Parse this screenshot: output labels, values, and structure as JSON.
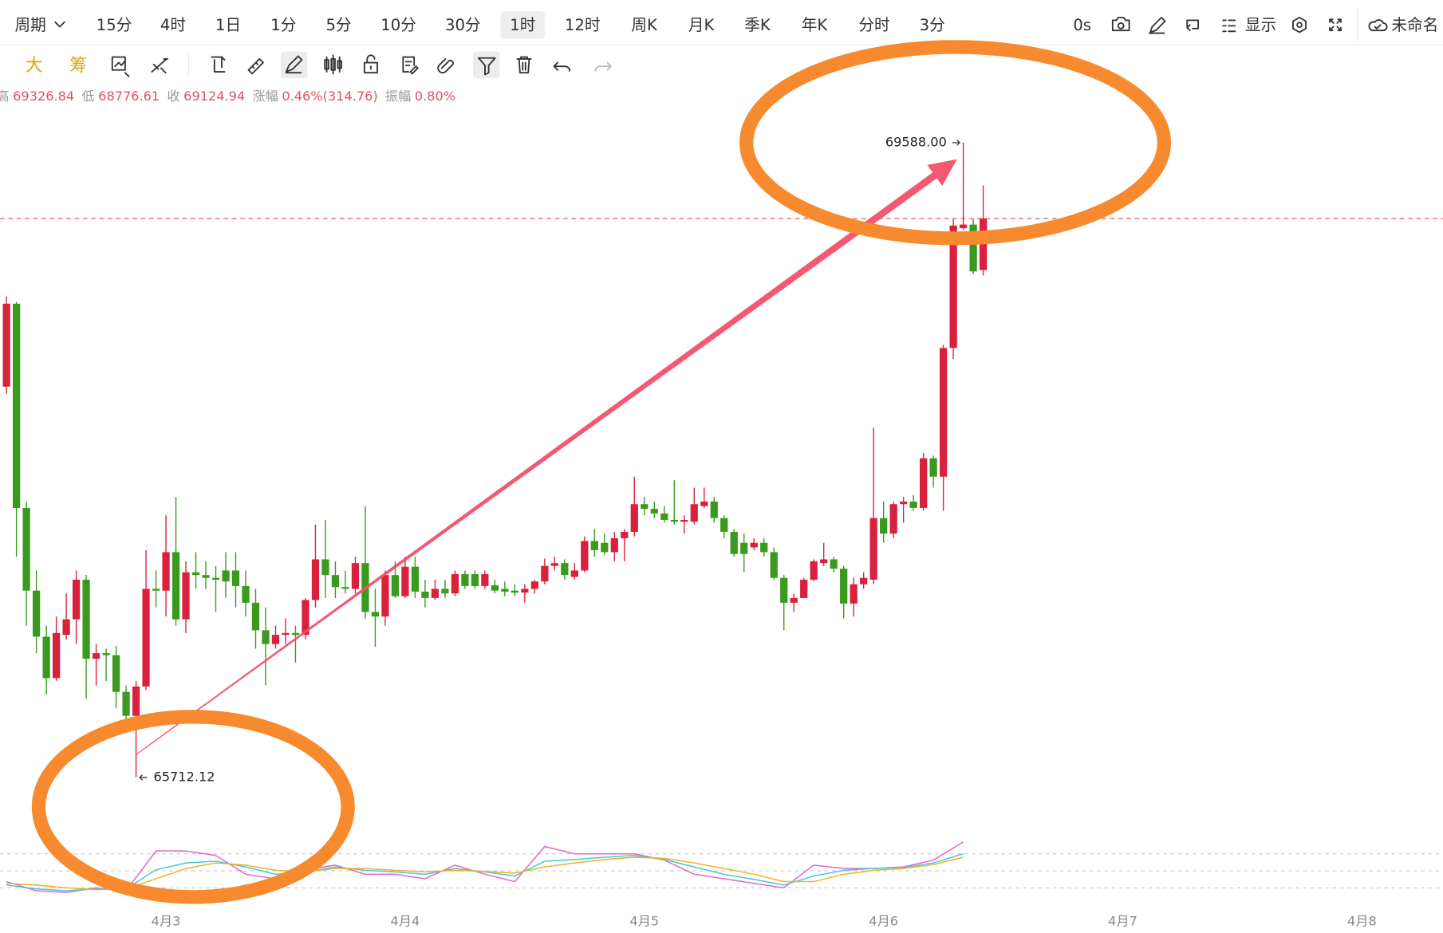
{
  "toolbar": {
    "periods": [
      {
        "label": "周期"
      },
      {
        "label": "15分"
      },
      {
        "label": "4时"
      },
      {
        "label": "1日"
      },
      {
        "label": "1分"
      },
      {
        "label": "5分"
      },
      {
        "label": "10分"
      },
      {
        "label": "30分"
      },
      {
        "label": "1时",
        "active": true
      },
      {
        "label": "12时"
      },
      {
        "label": "周K"
      },
      {
        "label": "月K"
      },
      {
        "label": "季K"
      },
      {
        "label": "年K"
      },
      {
        "label": "分时"
      },
      {
        "label": "3分"
      }
    ],
    "right": [
      "0s",
      "显示",
      "未命名"
    ],
    "tools": [
      "大",
      "筹"
    ]
  },
  "info": {
    "items": [
      [
        "高",
        "69326.84"
      ],
      [
        "低",
        "68776.61"
      ],
      [
        "收",
        "69124.94"
      ],
      [
        "涨幅",
        "0.46%(314.76)"
      ],
      [
        "振幅",
        "0.80%"
      ]
    ]
  },
  "chart_data": [
    {
      "type": "candlestick",
      "x": [
        0,
        1,
        2,
        3,
        4,
        5,
        6,
        7,
        8,
        9,
        10,
        11,
        12,
        13,
        14,
        15,
        16,
        17,
        18,
        19,
        20,
        21,
        22,
        23,
        24,
        25,
        26,
        27,
        28,
        29,
        30,
        31,
        32,
        33,
        34,
        35,
        36,
        37,
        38,
        39,
        40,
        41,
        42,
        43,
        44,
        45,
        46,
        47,
        48,
        49,
        50,
        51,
        52,
        53,
        54,
        55,
        56,
        57,
        58,
        59,
        60,
        61,
        62,
        63,
        64,
        65,
        66,
        67,
        68,
        69,
        70,
        71,
        72,
        73,
        74,
        75,
        76,
        77,
        78,
        79,
        80,
        81,
        82,
        83,
        84,
        85,
        86,
        87,
        88,
        89,
        90,
        91,
        92,
        93,
        94,
        95,
        96,
        97,
        98
      ],
      "open": [
        68099,
        68605,
        67358,
        66853,
        66572,
        66319,
        66583,
        66678,
        66920,
        66437,
        66471,
        66459,
        66235,
        66089,
        66268,
        66864,
        66853,
        67088,
        66678,
        66965,
        66948,
        66931,
        66976,
        66976,
        66881,
        66779,
        66611,
        66527,
        66583,
        66594,
        66583,
        66796,
        67044,
        66948,
        66875,
        66864,
        67021,
        66723,
        66695,
        66948,
        66819,
        66999,
        66847,
        66808,
        66864,
        66836,
        66954,
        66954,
        66881,
        66886,
        66864,
        66853,
        66841,
        66864,
        66909,
        67004,
        67021,
        66937,
        66976,
        67156,
        67145,
        67088,
        67173,
        67212,
        67381,
        67352,
        67324,
        67285,
        67274,
        67274,
        67369,
        67397,
        67296,
        67212,
        67145,
        67117,
        67145,
        67088,
        66931,
        66779,
        66808,
        66920,
        67021,
        67044,
        66987,
        66774,
        66892,
        66920,
        67296,
        67201,
        67381,
        67397,
        67358,
        67661,
        67549,
        68335,
        69066,
        69088,
        68810.18
      ],
      "high": [
        68650,
        68616,
        67397,
        66976,
        66639,
        66695,
        66836,
        66976,
        66948,
        66527,
        66499,
        66516,
        66274,
        66302,
        67100,
        66976,
        67313,
        67425,
        67032,
        67088,
        67032,
        67004,
        67088,
        67088,
        66976,
        66864,
        66751,
        66639,
        66684,
        66639,
        66808,
        67257,
        67285,
        67032,
        66976,
        67060,
        67369,
        66864,
        66976,
        67032,
        67060,
        67060,
        66920,
        66920,
        66920,
        66976,
        66976,
        66976,
        66976,
        66920,
        66909,
        66892,
        66892,
        66920,
        67049,
        67060,
        67044,
        67021,
        67184,
        67229,
        67201,
        67212,
        67229,
        67549,
        67425,
        67397,
        67369,
        67527,
        67313,
        67482,
        67482,
        67425,
        67313,
        67229,
        67201,
        67173,
        67173,
        67117,
        66948,
        66836,
        66931,
        67044,
        67145,
        67060,
        67004,
        66931,
        66965,
        67847,
        67397,
        67397,
        67425,
        67437,
        67695,
        67678,
        68352,
        69122,
        69588,
        69122,
        69326.84
      ],
      "low": [
        68055,
        67060,
        66639,
        66471,
        66218,
        66302,
        66555,
        66527,
        66190,
        66274,
        66302,
        66134,
        66021,
        65712.12,
        66246,
        66751,
        66695,
        66639,
        66594,
        66864,
        66864,
        66723,
        66808,
        66751,
        66695,
        66499,
        66274,
        66499,
        66527,
        66414,
        66555,
        66751,
        66808,
        66808,
        66836,
        66836,
        66684,
        66510,
        66639,
        66808,
        66808,
        66808,
        66751,
        66796,
        66808,
        66819,
        66864,
        66864,
        66864,
        66836,
        66819,
        66819,
        66779,
        66836,
        66892,
        66976,
        66920,
        66920,
        66965,
        67060,
        67072,
        67032,
        67032,
        67184,
        67313,
        67296,
        67268,
        67257,
        67201,
        67257,
        67358,
        67268,
        67173,
        67060,
        66965,
        67100,
        67060,
        66920,
        66611,
        66723,
        66808,
        66909,
        67004,
        66965,
        66684,
        66695,
        66864,
        66892,
        67145,
        67173,
        67268,
        67341,
        67341,
        67482,
        67341,
        68268,
        69054,
        68785,
        68776.61
      ],
      "close": [
        68605,
        67358,
        66853,
        66572,
        66319,
        66594,
        66678,
        66920,
        66437,
        66471,
        66459,
        66235,
        66089,
        66268,
        66864,
        66853,
        67088,
        66678,
        66965,
        66948,
        66931,
        66920,
        66909,
        66881,
        66779,
        66611,
        66527,
        66583,
        66594,
        66583,
        66796,
        67044,
        66948,
        66875,
        66864,
        67021,
        66723,
        66695,
        66948,
        66819,
        66999,
        66847,
        66808,
        66864,
        66836,
        66954,
        66881,
        66881,
        66954,
        66853,
        66847,
        66841,
        66864,
        66909,
        67004,
        67021,
        66948,
        66976,
        67156,
        67100,
        67088,
        67173,
        67212,
        67381,
        67352,
        67324,
        67285,
        67274,
        67285,
        67381,
        67397,
        67296,
        67212,
        67077,
        67077,
        67145,
        67088,
        66931,
        66779,
        66808,
        66920,
        67032,
        67044,
        66987,
        66774,
        66892,
        66931,
        67296,
        67201,
        67381,
        67397,
        67358,
        67661,
        67549,
        68335,
        69082,
        69088,
        68802,
        69124.94
      ],
      "up_color": "#d9213d",
      "down_color": "#3a9a1e",
      "xlim": [
        -0.65,
        144.13
      ],
      "xticks": [
        {
          "value": 16,
          "label": "4月3"
        },
        {
          "value": 40,
          "label": "4月4"
        },
        {
          "value": 64,
          "label": "4月5"
        },
        {
          "value": 88,
          "label": "4月6"
        },
        {
          "value": 112,
          "label": "4月7"
        },
        {
          "value": 136,
          "label": "4月8"
        }
      ],
      "ylim": [
        64926,
        69942
      ],
      "last_price_line": true,
      "extreme_labels": [
        {
          "x": 96,
          "value": 69588,
          "label": "69588.00"
        },
        {
          "x": 13,
          "value": 65712.12
        }
      ]
    },
    {
      "type": "line",
      "x": [
        0,
        3,
        6,
        9,
        12,
        15,
        18,
        21,
        24,
        27,
        30,
        33,
        36,
        39,
        42,
        45,
        48,
        51,
        54,
        57,
        60,
        63,
        66,
        69,
        72,
        75,
        78,
        81,
        84,
        87,
        90,
        93,
        96
      ],
      "series": [
        {
          "color": "#e066c8",
          "values": [
            31,
            15,
            12,
            20,
            15,
            85,
            85,
            77,
            44,
            36,
            52,
            60,
            44,
            44,
            36,
            60,
            44,
            31,
            93,
            80,
            80,
            80,
            69,
            44,
            36,
            28,
            20,
            60,
            54,
            54,
            57,
            69,
            101
          ]
        },
        {
          "color": "#45c8d6",
          "values": [
            25,
            18,
            15,
            18,
            18,
            52,
            64,
            67,
            57,
            44,
            48,
            57,
            51,
            48,
            44,
            54,
            48,
            41,
            67,
            70,
            74,
            77,
            70,
            57,
            44,
            35,
            25,
            41,
            51,
            54,
            56,
            64,
            80
          ]
        },
        {
          "color": "#f0b023",
          "values": [
            28,
            25,
            20,
            17,
            18,
            36,
            54,
            64,
            60,
            51,
            48,
            54,
            54,
            51,
            48,
            51,
            49,
            46,
            57,
            64,
            70,
            74,
            72,
            64,
            54,
            44,
            31,
            31,
            44,
            51,
            54,
            61,
            74
          ]
        }
      ],
      "xlim": [
        -0.65,
        144.13
      ],
      "ylim": [
        -20,
        120
      ],
      "yticks": [
        20,
        50,
        80
      ],
      "grid": true
    }
  ]
}
